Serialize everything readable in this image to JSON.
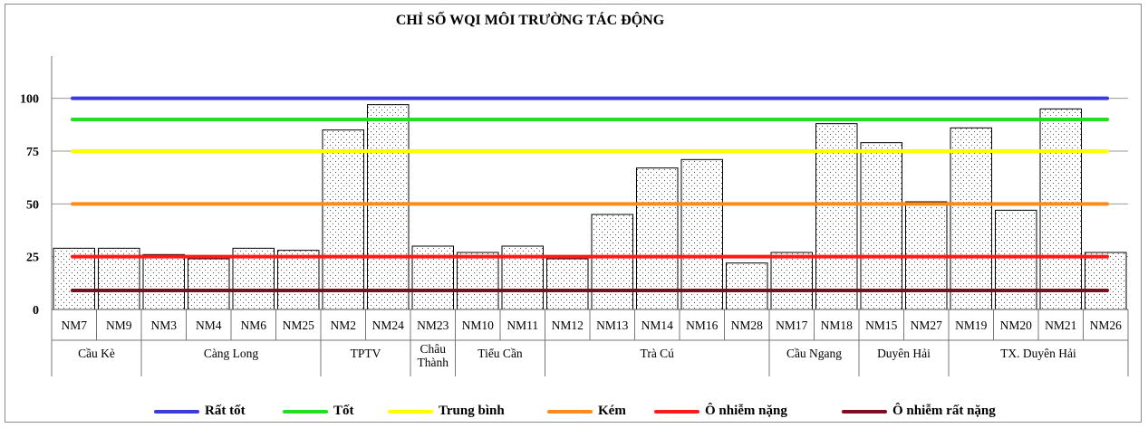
{
  "chart_data": {
    "type": "bar",
    "title": "CHỈ SỐ WQI MÔI TRƯỜNG TÁC ĐỘNG",
    "xlabel": "",
    "ylabel": "",
    "ylim": [
      0,
      120
    ],
    "yticks": [
      "0",
      "25",
      "50",
      "75",
      "100"
    ],
    "categories": [
      "NM7",
      "NM9",
      "NM3",
      "NM4",
      "NM6",
      "NM25",
      "NM2",
      "NM24",
      "NM23",
      "NM10",
      "NM11",
      "NM12",
      "NM13",
      "NM14",
      "NM16",
      "NM28",
      "NM17",
      "NM18",
      "NM15",
      "NM27",
      "NM19",
      "NM20",
      "NM21",
      "NM26"
    ],
    "values": [
      29,
      29,
      26,
      24,
      29,
      28,
      85,
      97,
      30,
      27,
      30,
      24,
      45,
      67,
      71,
      22,
      27,
      88,
      79,
      51,
      86,
      47,
      95,
      27
    ],
    "groups": [
      {
        "label": "Cầu Kè",
        "count": 2
      },
      {
        "label": "Càng Long",
        "count": 4
      },
      {
        "label": "TPTV",
        "count": 2
      },
      {
        "label": "Châu\nThành",
        "count": 1
      },
      {
        "label": "Tiểu Cần",
        "count": 2
      },
      {
        "label": "Trà Cú",
        "count": 5
      },
      {
        "label": "Cầu Ngang",
        "count": 2
      },
      {
        "label": "Duyên Hải",
        "count": 2
      },
      {
        "label": "TX. Duyên Hải",
        "count": 4
      }
    ],
    "thresholds": [
      {
        "name": "Rất tốt",
        "value": 100,
        "color": "#3b3bdb"
      },
      {
        "name": "Tốt",
        "value": 90,
        "color": "#22dd22"
      },
      {
        "name": "Trung bình",
        "value": 75,
        "color": "#ffff00"
      },
      {
        "name": "Kém",
        "value": 50,
        "color": "#ff8c1a"
      },
      {
        "name": "Ô nhiễm nặng",
        "value": 25,
        "color": "#ff1a1a"
      },
      {
        "name": "Ô nhiễm rất nặng",
        "value": 9,
        "color": "#7a0f1f"
      }
    ],
    "grid": true,
    "legend": "bottom"
  }
}
